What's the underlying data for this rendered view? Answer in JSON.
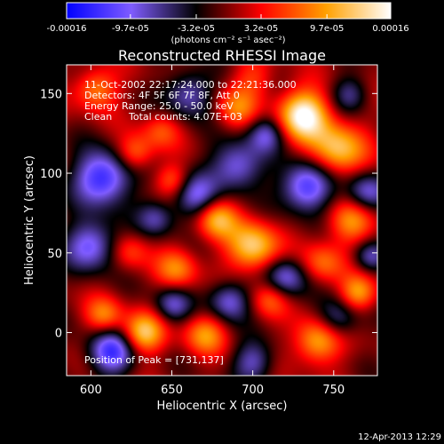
{
  "chart_data": {
    "type": "heatmap",
    "title": "Reconstructed RHESSI Image",
    "xlabel": "Heliocentric X (arcsec)",
    "ylabel": "Heliocentric Y (arcsec)",
    "xlim": [
      585,
      777
    ],
    "ylim": [
      -27,
      168
    ],
    "x_ticks": [
      600,
      650,
      700,
      750
    ],
    "y_ticks": [
      0,
      50,
      100,
      150
    ],
    "colorbar": {
      "min": -0.00016,
      "max": 0.00016,
      "tick_values": [
        -0.00016,
        -9.7e-05,
        -3.2e-05,
        3.2e-05,
        9.7e-05,
        0.00016
      ],
      "tick_labels": [
        "-0.00016",
        "-9.7e-05",
        "-3.2e-05",
        "3.2e-05",
        "9.7e-05",
        "0.00016"
      ],
      "unit_label": "(photons cm⁻² s⁻¹ asec⁻²)",
      "stops": [
        "#0000ff",
        "#7f5cff",
        "#000000",
        "#ff0000",
        "#ffa000",
        "#ffffff"
      ]
    },
    "annotations": {
      "time_range": "11-Oct-2002 22:17:24.000 to 22:21:36.000",
      "detectors": "Detectors: 4F 5F 6F 7F 8F, Att 0",
      "energy_range": "Energy Range: 25.0 - 50.0 keV",
      "method": "Clean",
      "total_counts": "Total counts: 4.07E+03",
      "peak_position": "Position of Peak = [731,137]"
    },
    "peak": {
      "x": 731,
      "y": 137
    },
    "blobs": [
      {
        "x": 731,
        "y": 137,
        "a": 1.0,
        "s": 11
      },
      {
        "x": 752,
        "y": 115,
        "a": 0.75,
        "s": 12
      },
      {
        "x": 690,
        "y": 141,
        "a": 0.45,
        "s": 9
      },
      {
        "x": 643,
        "y": 127,
        "a": 0.35,
        "s": 8
      },
      {
        "x": 700,
        "y": 54,
        "a": 0.8,
        "s": 11
      },
      {
        "x": 677,
        "y": 72,
        "a": 0.7,
        "s": 9
      },
      {
        "x": 653,
        "y": 40,
        "a": 0.5,
        "s": 9
      },
      {
        "x": 760,
        "y": 70,
        "a": 0.55,
        "s": 10
      },
      {
        "x": 743,
        "y": 44,
        "a": 0.45,
        "s": 9
      },
      {
        "x": 603,
        "y": 153,
        "a": 0.55,
        "s": 9
      },
      {
        "x": 627,
        "y": 113,
        "a": 0.5,
        "s": 8
      },
      {
        "x": 650,
        "y": 96,
        "a": 0.4,
        "s": 7
      },
      {
        "x": 624,
        "y": 51,
        "a": 0.35,
        "s": 8
      },
      {
        "x": 632,
        "y": 0,
        "a": 0.75,
        "s": 9
      },
      {
        "x": 608,
        "y": 11,
        "a": 0.5,
        "s": 8
      },
      {
        "x": 670,
        "y": -1,
        "a": 0.55,
        "s": 9
      },
      {
        "x": 740,
        "y": -5,
        "a": 0.7,
        "s": 10
      },
      {
        "x": 765,
        "y": 25,
        "a": 0.6,
        "s": 8
      },
      {
        "x": 710,
        "y": 21,
        "a": 0.4,
        "s": 8
      },
      {
        "x": 700,
        "y": 160,
        "a": 0.3,
        "s": 9
      },
      {
        "x": 607,
        "y": 97,
        "a": -0.9,
        "s": 12
      },
      {
        "x": 600,
        "y": 55,
        "a": -0.7,
        "s": 11
      },
      {
        "x": 612,
        "y": -12,
        "a": -0.8,
        "s": 10
      },
      {
        "x": 665,
        "y": 85,
        "a": -0.6,
        "s": 10
      },
      {
        "x": 690,
        "y": 105,
        "a": -0.65,
        "s": 11
      },
      {
        "x": 733,
        "y": 92,
        "a": -0.85,
        "s": 11
      },
      {
        "x": 770,
        "y": 88,
        "a": -0.6,
        "s": 9
      },
      {
        "x": 720,
        "y": 35,
        "a": -0.6,
        "s": 9
      },
      {
        "x": 685,
        "y": 20,
        "a": -0.6,
        "s": 9
      },
      {
        "x": 700,
        "y": -18,
        "a": -0.5,
        "s": 9
      },
      {
        "x": 752,
        "y": 9,
        "a": -0.5,
        "s": 9
      },
      {
        "x": 660,
        "y": 150,
        "a": -0.55,
        "s": 10
      },
      {
        "x": 708,
        "y": 125,
        "a": -0.5,
        "s": 8
      },
      {
        "x": 650,
        "y": 18,
        "a": -0.5,
        "s": 8
      },
      {
        "x": 760,
        "y": 150,
        "a": -0.4,
        "s": 8
      },
      {
        "x": 640,
        "y": 72,
        "a": -0.45,
        "s": 8
      },
      {
        "x": 772,
        "y": 48,
        "a": -0.45,
        "s": 7
      }
    ]
  },
  "footer": {
    "timestamp": "12-Apr-2013 12:29"
  }
}
